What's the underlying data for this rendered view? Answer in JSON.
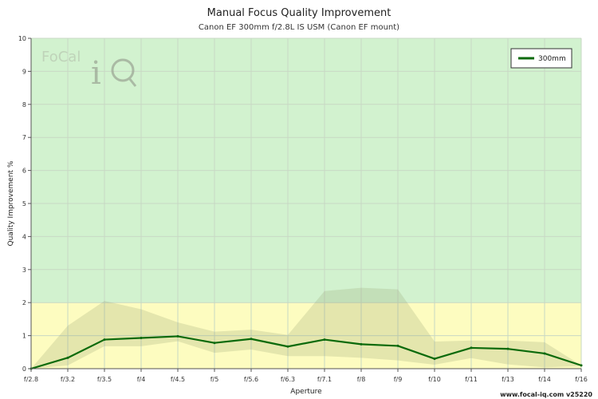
{
  "chart_data": {
    "type": "line",
    "title": "Manual Focus Quality Improvement",
    "subtitle": "Canon EF 300mm f/2.8L IS USM (Canon EF mount)",
    "xlabel": "Aperture",
    "ylabel": "Quality Improvement %",
    "categories": [
      "f/2.8",
      "f/3.2",
      "f/3.5",
      "f/4",
      "f/4.5",
      "f/5",
      "f/5.6",
      "f/6.3",
      "f/7.1",
      "f/8",
      "f/9",
      "f/10",
      "f/11",
      "f/13",
      "f/14",
      "f/16"
    ],
    "ylim": [
      0,
      10
    ],
    "yticks": [
      0,
      1,
      2,
      3,
      4,
      5,
      6,
      7,
      8,
      9,
      10
    ],
    "grid": true,
    "legend_position": "top-right",
    "zones": [
      {
        "from": 0,
        "to": 2,
        "color": "#fdfcc0"
      },
      {
        "from": 2,
        "to": 10,
        "color": "#d2f2cf"
      }
    ],
    "series": [
      {
        "name": "300mm",
        "color": "#0b6a0b",
        "values": [
          0.0,
          0.33,
          0.88,
          0.93,
          0.98,
          0.78,
          0.9,
          0.67,
          0.88,
          0.74,
          0.69,
          0.3,
          0.63,
          0.6,
          0.46,
          0.1
        ],
        "range_upper": [
          0.0,
          1.3,
          2.05,
          1.8,
          1.4,
          1.12,
          1.18,
          1.02,
          2.35,
          2.45,
          2.4,
          0.82,
          0.85,
          0.85,
          0.8,
          0.1
        ],
        "range_lower": [
          0.0,
          0.1,
          0.68,
          0.68,
          0.83,
          0.48,
          0.58,
          0.38,
          0.38,
          0.33,
          0.25,
          0.12,
          0.32,
          0.13,
          0.04,
          0.08
        ]
      }
    ]
  },
  "logo": {
    "text": "FoCal iQ"
  },
  "footer": {
    "text": "www.focal-iq.com  v25220"
  }
}
